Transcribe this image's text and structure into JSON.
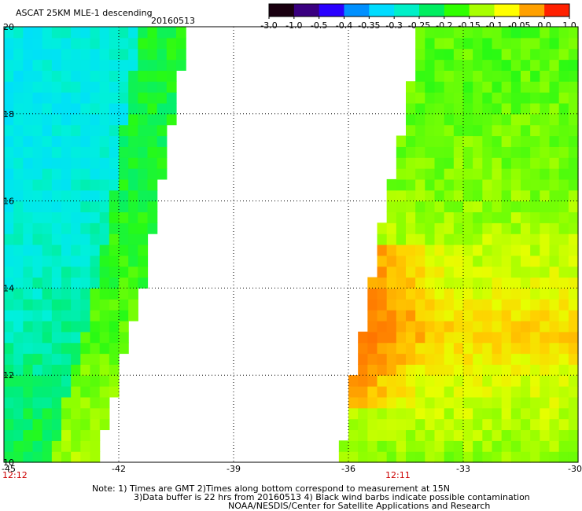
{
  "header": {
    "title": "ASCAT 25KM MLE-1 descending",
    "date": "20160513"
  },
  "colorbar": {
    "colors": [
      "#1a0010",
      "#3a0080",
      "#2a00ff",
      "#0090ff",
      "#00dcff",
      "#00f0c8",
      "#00ee60",
      "#30ff00",
      "#a8ff00",
      "#ffff00",
      "#ffa000",
      "#ff2000"
    ],
    "labels": [
      "-3.0",
      "-1.0",
      "-0.5",
      "-0.4",
      "-0.35",
      "-0.3",
      "-0.25",
      "-0.2",
      "-0.15",
      "-0.1",
      "-0.05",
      "0.0",
      "1.0"
    ]
  },
  "axes": {
    "x_ticks": [
      "-45",
      "-42",
      "-39",
      "-36",
      "-33",
      "-30"
    ],
    "y_ticks": [
      "20",
      "18",
      "16",
      "14",
      "12",
      "10"
    ]
  },
  "pass_times": [
    "12:12",
    "12:11"
  ],
  "notes": [
    "Note: 1) Times are GMT 2)Times along bottom correspond to measurement at 15N",
    "3)Data buffer is 22 hrs from 20160513 4) Black wind barbs indicate possible contamination",
    "NOAA/NESDIS/Center for Satellite Applications and Research"
  ],
  "chart_data": {
    "type": "heatmap",
    "title": "ASCAT 25KM MLE-1 descending",
    "xlim": [
      -45,
      -30
    ],
    "ylim": [
      10,
      20
    ],
    "grid": true,
    "swaths": [
      {
        "pass_time": "12:12",
        "extent_lon": [
          -45,
          -40.8
        ],
        "right_edge_lon_at_lat": {
          "10": -42.6,
          "12": -42.0,
          "14": -41.4,
          "16": -41.0,
          "18": -40.6,
          "20": -40.2
        },
        "approx_mle_by_lat": {
          "10": -0.21,
          "12": -0.24,
          "14": -0.27,
          "16": -0.29,
          "18": -0.3,
          "20": -0.29
        }
      },
      {
        "pass_time": "12:11",
        "extent_lon": [
          -36.4,
          -30
        ],
        "left_edge_lon_at_lat": {
          "10": -36.2,
          "12": -35.9,
          "14": -35.4,
          "16": -35.0,
          "18": -34.5,
          "20": -34.1
        },
        "approx_mle_by_lat": {
          "10": -0.15,
          "12": -0.1,
          "13": -0.05,
          "14": -0.1,
          "16": -0.15,
          "18": -0.17,
          "20": -0.18
        }
      }
    ]
  }
}
